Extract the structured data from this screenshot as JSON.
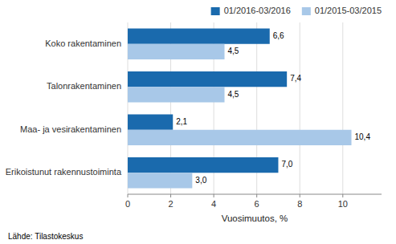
{
  "chart_data": {
    "type": "bar",
    "orientation": "horizontal",
    "categories": [
      "Koko rakentaminen",
      "Talonrakentaminen",
      "Maa- ja vesirakentaminen",
      "Erikoistunut rakennustoiminta"
    ],
    "series": [
      {
        "name": "01/2016-03/2016",
        "color": "#1a6aad",
        "values": [
          6.6,
          7.4,
          2.1,
          7.0
        ],
        "value_labels": [
          "6,6",
          "7,4",
          "2,1",
          "7,0"
        ]
      },
      {
        "name": "01/2015-03/2015",
        "color": "#a8c8e8",
        "values": [
          4.5,
          4.5,
          10.4,
          3.0
        ],
        "value_labels": [
          "4,5",
          "4,5",
          "10,4",
          "3,0"
        ]
      }
    ],
    "xlabel": "Vuosimuutos, %",
    "xlim": [
      0,
      11.8
    ],
    "xticks": [
      0,
      2,
      4,
      6,
      8,
      10
    ],
    "grid": true,
    "legend": "upper right",
    "data_labels": true,
    "annotations": [
      "Lähde: Tilastokeskus"
    ]
  }
}
